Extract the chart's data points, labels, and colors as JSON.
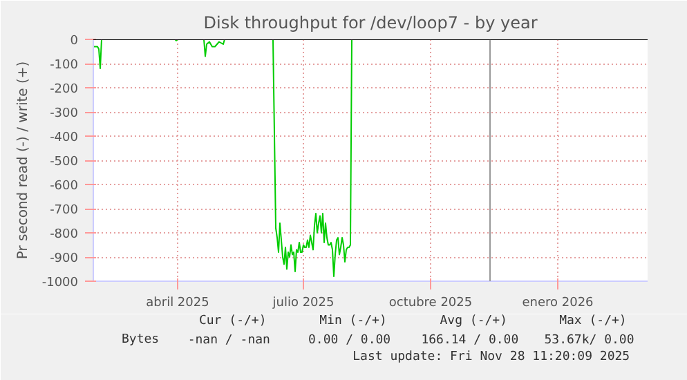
{
  "chart_data": {
    "type": "line",
    "title": "Disk throughput for /dev/loop7 - by year",
    "ylabel": "Pr second read (-) / write (+)",
    "x": [
      "2025-01-30",
      "2025-02-02",
      "2025-02-03",
      "2025-02-04",
      "2025-02-05",
      "2025-03-30",
      "2025-03-31",
      "2025-04-01",
      "2025-04-20",
      "2025-04-21",
      "2025-04-22",
      "2025-04-24",
      "2025-04-26",
      "2025-04-28",
      "2025-05-01",
      "2025-05-04",
      "2025-05-05",
      "2025-06-09",
      "2025-06-11",
      "2025-06-12",
      "2025-06-13",
      "2025-06-14",
      "2025-06-16",
      "2025-06-17",
      "2025-06-18",
      "2025-06-19",
      "2025-06-20",
      "2025-06-21",
      "2025-06-22",
      "2025-06-23",
      "2025-06-24",
      "2025-06-25",
      "2025-06-26",
      "2025-06-27",
      "2025-06-28",
      "2025-06-29",
      "2025-06-30",
      "2025-07-01",
      "2025-07-02",
      "2025-07-03",
      "2025-07-04",
      "2025-07-05",
      "2025-07-06",
      "2025-07-07",
      "2025-07-08",
      "2025-07-09",
      "2025-07-10",
      "2025-07-11",
      "2025-07-12",
      "2025-07-13",
      "2025-07-14",
      "2025-07-15",
      "2025-07-16",
      "2025-07-17",
      "2025-07-18",
      "2025-07-19",
      "2025-07-20",
      "2025-07-21",
      "2025-07-22",
      "2025-07-23",
      "2025-07-24",
      "2025-07-25",
      "2025-07-26",
      "2025-07-27",
      "2025-07-28",
      "2025-07-29",
      "2025-07-30",
      "2025-07-31",
      "2025-08-01",
      "2025-08-02",
      "2025-08-03",
      "2025-08-04",
      "2025-08-05",
      "2025-11-13"
    ],
    "series": [
      {
        "name": "Bytes",
        "color": "#00cc00",
        "values": [
          -30,
          -30,
          -40,
          -120,
          0,
          0,
          -5,
          0,
          0,
          -70,
          -20,
          -10,
          -30,
          -30,
          -10,
          -20,
          0,
          0,
          -780,
          -820,
          -880,
          -760,
          -900,
          -930,
          -860,
          -950,
          -880,
          -900,
          -850,
          -890,
          -880,
          -960,
          -870,
          -880,
          -840,
          -880,
          -880,
          -850,
          -860,
          -860,
          -830,
          -860,
          -810,
          -840,
          -870,
          -770,
          -720,
          -800,
          -760,
          -730,
          -800,
          -720,
          -840,
          -760,
          -820,
          -850,
          -850,
          -840,
          -870,
          -980,
          -890,
          -830,
          -820,
          -890,
          -860,
          -820,
          -850,
          -920,
          -870,
          -860,
          -860,
          -850,
          0,
          0
        ]
      }
    ],
    "xlim": [
      "2025-01-30",
      "2026-03-07"
    ],
    "xticks": [
      {
        "value": "2025-04-01",
        "label": "abril 2025"
      },
      {
        "value": "2025-07-01",
        "label": "julio 2025"
      },
      {
        "value": "2025-10-01",
        "label": "octubre 2025"
      },
      {
        "value": "2026-01-01",
        "label": "enero 2026"
      }
    ],
    "ylim": [
      -1000,
      0
    ],
    "yticks": [
      0,
      -100,
      -200,
      -300,
      -400,
      -500,
      -600,
      -700,
      -800,
      -900,
      -1000
    ],
    "ref_lines": [
      {
        "axis": "x",
        "value": "2025-11-13",
        "label": null,
        "color": "#999999"
      }
    ],
    "grid": true,
    "legend": "bottom",
    "marker": "none",
    "line_style": "solid",
    "annotations": [
      "Cur (-/+)",
      "Min (-/+)",
      "Avg (-/+)",
      "Max (-/+)",
      "-nan /  -nan",
      "0.00 /  0.00",
      "166.14 /  0.00",
      "53.67k/  0.00",
      "Last update: Fri Nov 28 11:20:09 2025"
    ]
  }
}
